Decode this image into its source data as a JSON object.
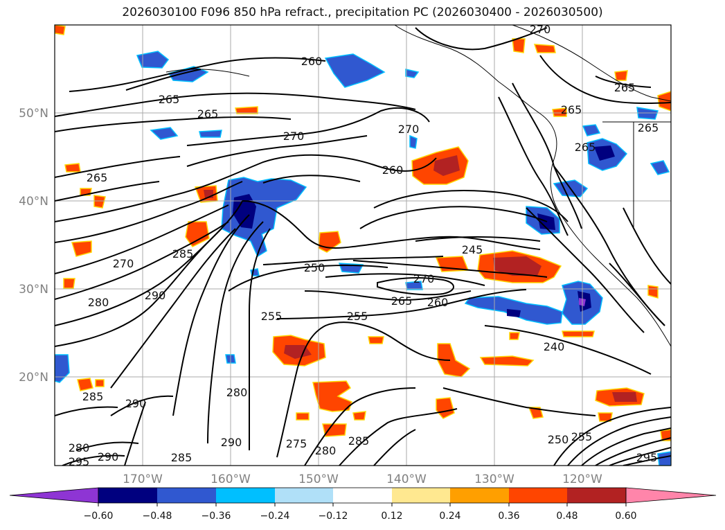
{
  "title": "2026030100 F096 850 hPa refract., precipitation PC (2026030400 - 2026030500)",
  "map": {
    "lat_labels": [
      "50°N",
      "40°N",
      "30°N",
      "20°N"
    ],
    "lon_labels": [
      "170°W",
      "160°W",
      "150°W",
      "140°W",
      "130°W",
      "120°W"
    ],
    "grid": true,
    "contour_field": "850 hPa refractivity",
    "shaded_field": "precipitation PC",
    "contour_labels": [
      "270",
      "260",
      "265",
      "265",
      "265",
      "270",
      "270",
      "260",
      "265",
      "265",
      "265",
      "265",
      "270",
      "285",
      "280",
      "290",
      "250",
      "245",
      "255",
      "255",
      "270",
      "265",
      "260",
      "240",
      "280",
      "285",
      "290",
      "290",
      "275",
      "280",
      "285",
      "280",
      "295",
      "290",
      "285",
      "250",
      "255",
      "295"
    ]
  },
  "colorbar": {
    "tick_labels": [
      "−0.60",
      "−0.48",
      "−0.36",
      "−0.24",
      "−0.12",
      "0.12",
      "0.24",
      "0.36",
      "0.48",
      "0.60"
    ],
    "colors": [
      "#8e35d4",
      "#00007f",
      "#3058d0",
      "#00bfff",
      "#b0e0f8",
      "#ffffff",
      "#ffe890",
      "#ff9f00",
      "#ff4500",
      "#b22222",
      "#ff85aa"
    ],
    "extend": "both"
  }
}
